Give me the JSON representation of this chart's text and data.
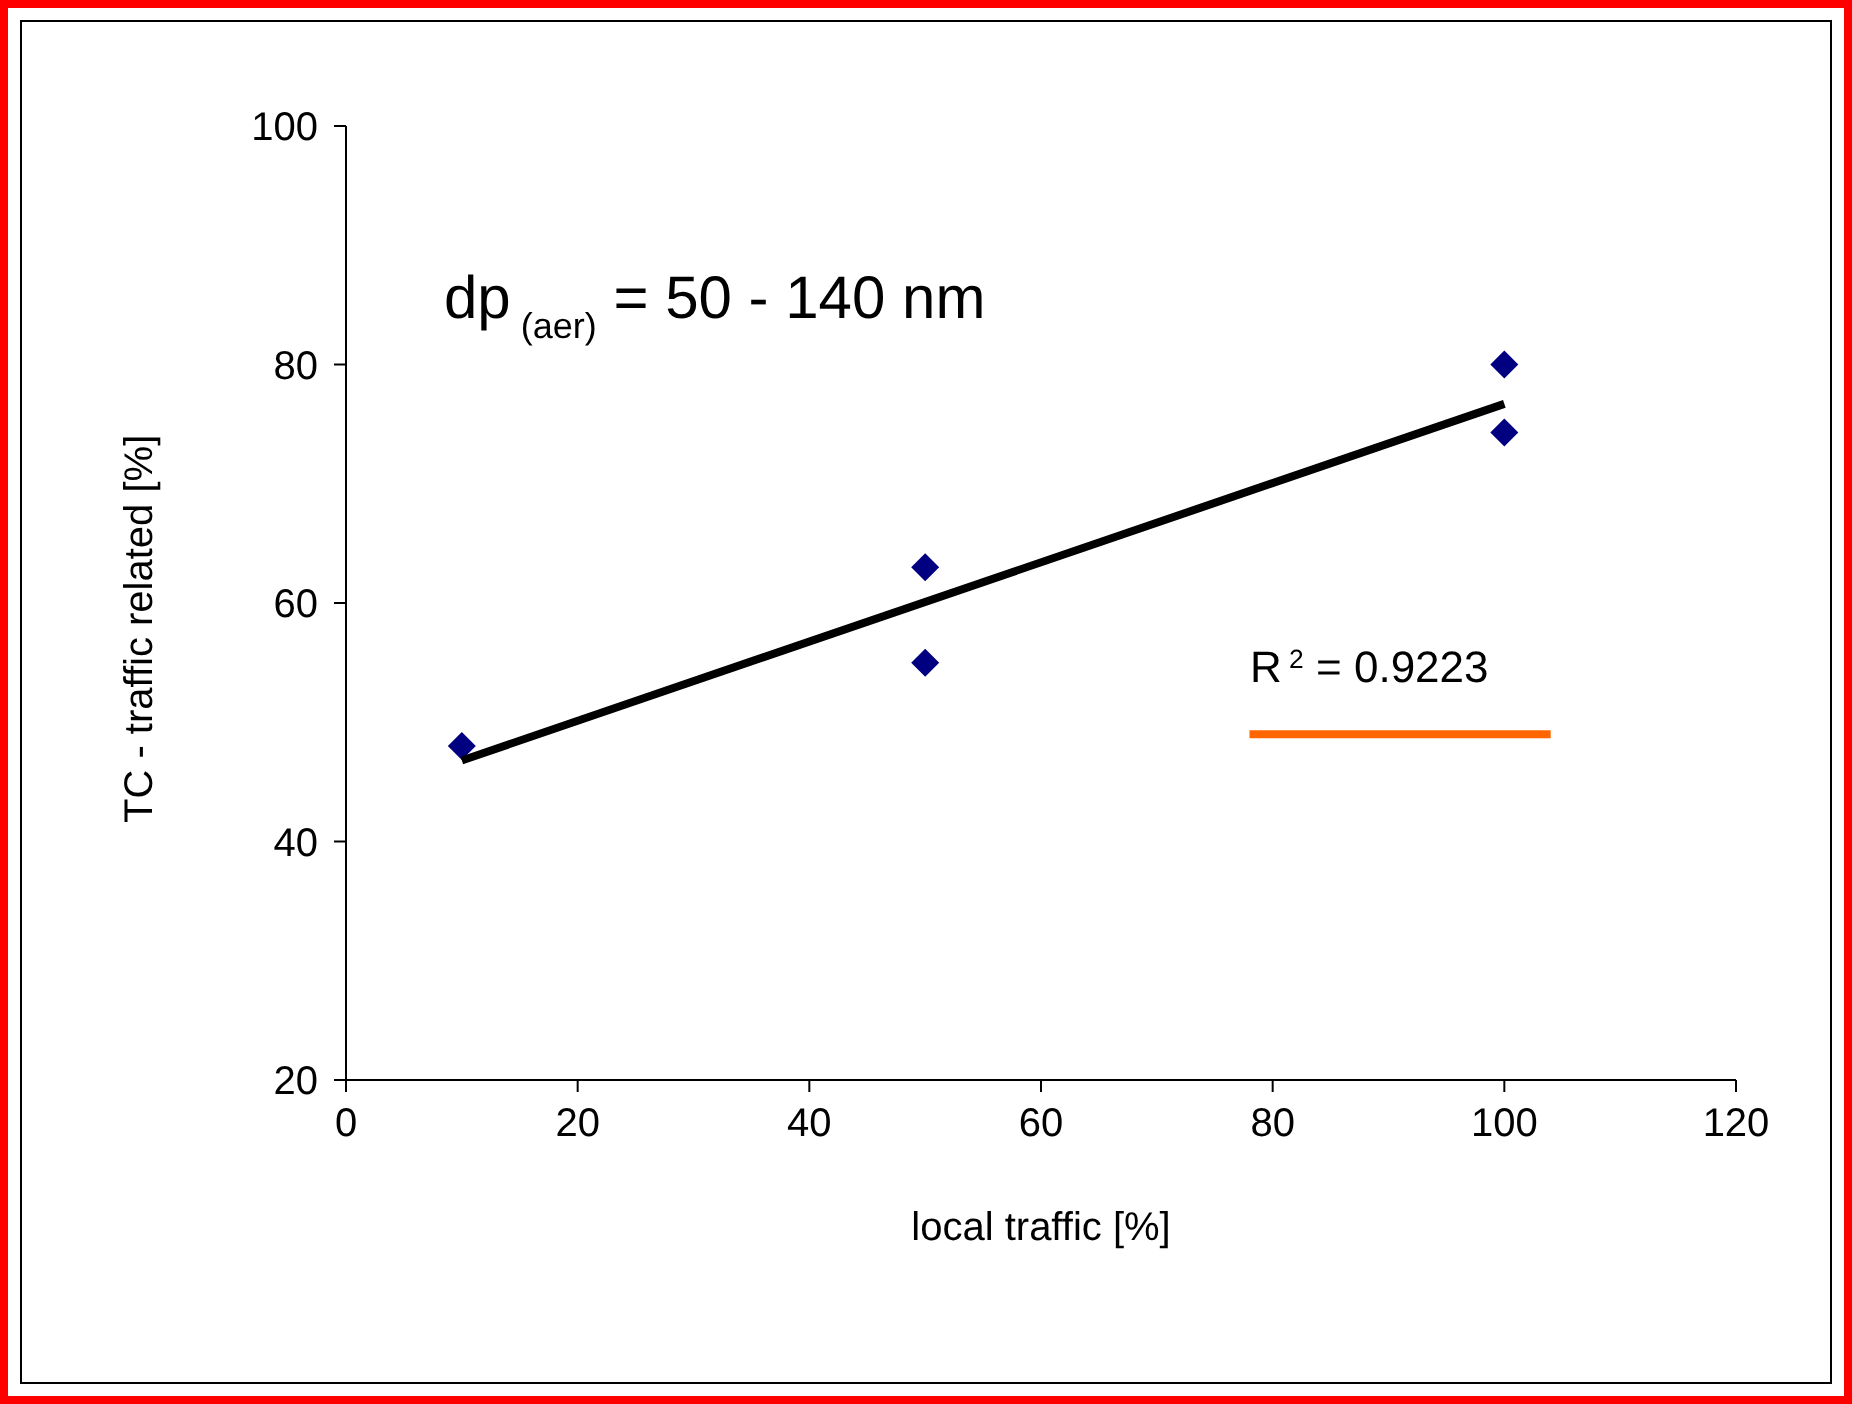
{
  "chart_data": {
    "type": "scatter",
    "xlabel": "local traffic [%]",
    "ylabel": "TC - traffic related [%]",
    "annotations": [
      "dp$_{(aer)}$ = 50 - 140 nm",
      "R$^{2}$ = 0.9223"
    ],
    "series": [
      {
        "color": "#000080",
        "x": [
          10,
          50,
          50,
          100,
          100
        ],
        "values": [
          48,
          63,
          55,
          80,
          74.3
        ],
        "marker": "diamond"
      },
      {
        "type": "line",
        "color": "#000000",
        "x": [
          10,
          100
        ],
        "values": [
          46.8,
          76.7
        ],
        "marker": "none"
      },
      {
        "type": "line",
        "color": "#ff6600",
        "x": [
          78,
          104
        ],
        "values": [
          49,
          49
        ],
        "marker": "none"
      }
    ],
    "xlim": [
      0,
      120
    ],
    "xticks": [
      0,
      20,
      40,
      60,
      80,
      100,
      120
    ],
    "ylim": [
      20,
      100
    ],
    "yticks": [
      20,
      40,
      60,
      80,
      100
    ],
    "grid": false,
    "legend": false
  }
}
